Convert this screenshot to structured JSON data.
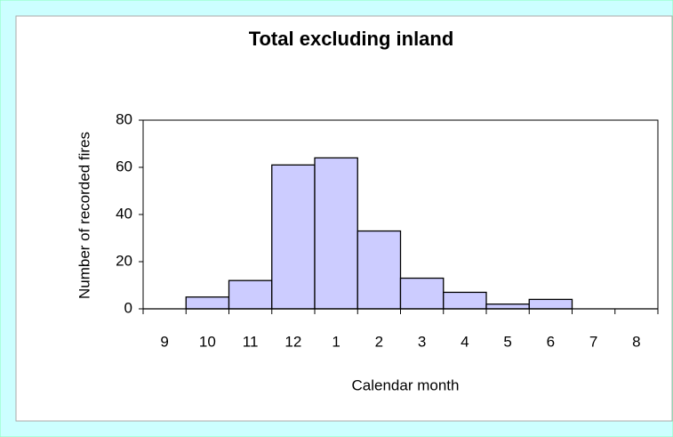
{
  "chart_data": {
    "type": "bar",
    "title": "Total excluding inland",
    "xlabel": "Calendar month",
    "ylabel": "Number of recorded fires",
    "categories": [
      "9",
      "10",
      "11",
      "12",
      "1",
      "2",
      "3",
      "4",
      "5",
      "6",
      "7",
      "8"
    ],
    "values": [
      0,
      5,
      12,
      61,
      64,
      33,
      13,
      7,
      2,
      4,
      0,
      0
    ],
    "color": "#ccccff",
    "ylim": [
      0,
      80
    ],
    "yticks": [
      0,
      20,
      40,
      60,
      80
    ],
    "grid": false
  }
}
